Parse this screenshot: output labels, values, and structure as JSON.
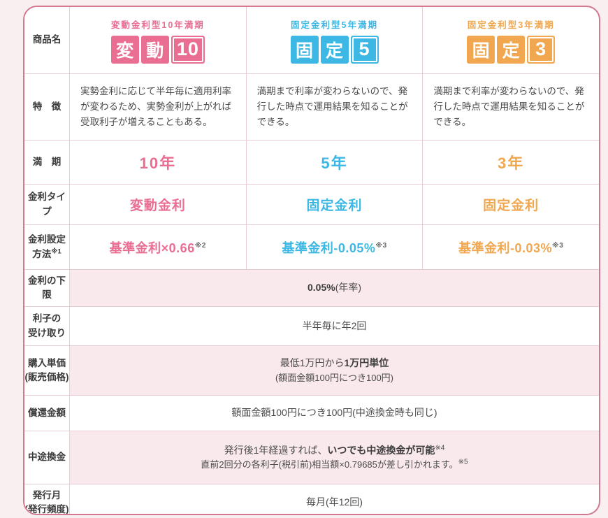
{
  "colors": {
    "pink": "#ea6d92",
    "blue": "#3db7e4",
    "orange": "#f0a750",
    "row_highlight": "#f9e9ec",
    "card_border": "#d2798f",
    "grid_line": "#e7cdd5"
  },
  "labels": {
    "product": "商品名",
    "feature": "特　徴",
    "maturity": "満　期",
    "rate_type": "金利タイプ",
    "rate_method_line1": "金利設定",
    "rate_method_line2": "方法",
    "rate_method_ref": "※1",
    "floor": "金利の下限",
    "interest_line1": "利子の",
    "interest_line2": "受け取り",
    "purchase_line1": "購入単価",
    "purchase_line2": "(販売価格)",
    "redemption": "償還金額",
    "early_redemption": "中途換金",
    "issue_line1": "発行月",
    "issue_line2": "(発行頻度)"
  },
  "products": [
    {
      "name": "変動10",
      "color": "#ea6d92",
      "subtitle": "変動金利型10年満期",
      "logo_chars": [
        "変",
        "動"
      ],
      "logo_num": "10",
      "feature": "実勢金利に応じて半年毎に適用利率が変わるため、実勢金利が上がれば受取利子が増えることもある。",
      "maturity": "10年",
      "rate_type": "変動金利",
      "formula": "基準金利×0.66",
      "formula_ref": "※2"
    },
    {
      "name": "固定5",
      "color": "#3db7e4",
      "subtitle": "固定金利型5年満期",
      "logo_chars": [
        "固",
        "定"
      ],
      "logo_num": "5",
      "feature": "満期まで利率が変わらないので、発行した時点で運用結果を知ることができる。",
      "maturity": "5年",
      "rate_type": "固定金利",
      "formula": "基準金利-0.05%",
      "formula_ref": "※3"
    },
    {
      "name": "固定3",
      "color": "#f0a750",
      "subtitle": "固定金利型3年満期",
      "logo_chars": [
        "固",
        "定"
      ],
      "logo_num": "3",
      "feature": "満期まで利率が変わらないので、発行した時点で運用結果を知ることができる。",
      "maturity": "3年",
      "rate_type": "固定金利",
      "formula": "基準金利-0.03%",
      "formula_ref": "※3"
    }
  ],
  "shared": {
    "floor_bold": "0.05%",
    "floor_normal": "(年率)",
    "interest_payment": "半年毎に年2回",
    "purchase_line1_normal": "最低1万円から",
    "purchase_line1_bold": "1万円単位",
    "purchase_line2": "(額面金額100円につき100円)",
    "redemption": "額面金額100円につき100円(中途換金時も同じ)",
    "early_line1_normal": "発行後1年経過すれば、",
    "early_line1_bold": "いつでも中途換金が可能",
    "early_line1_ref": "※4",
    "early_line2": "直前2回分の各利子(税引前)相当額×0.79685が差し引かれます。",
    "early_line2_ref": "※5",
    "issue_month": "毎月(年12回)"
  }
}
